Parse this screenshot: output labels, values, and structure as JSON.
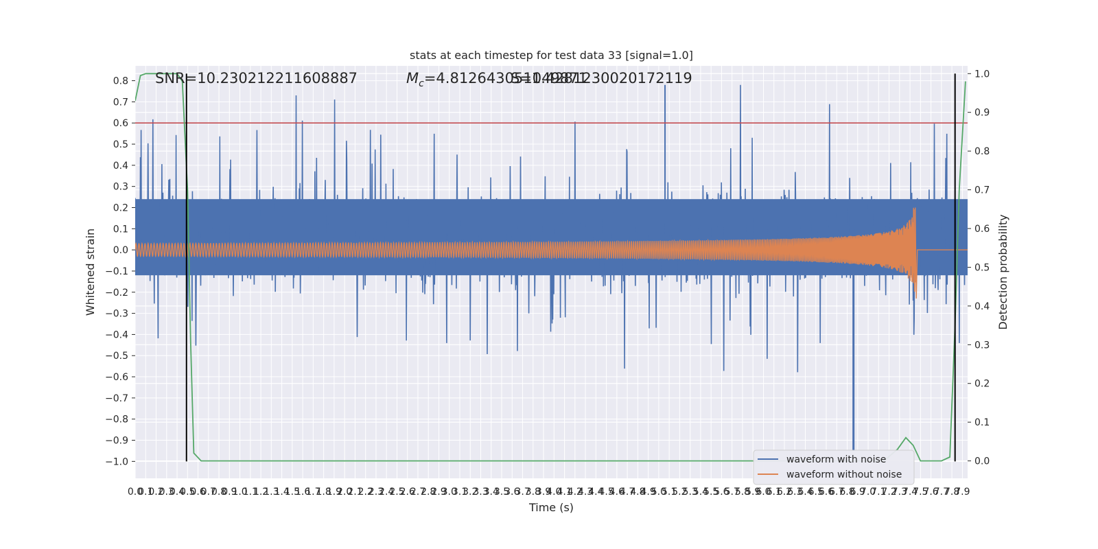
{
  "chart_data": {
    "type": "line",
    "title": "stats at each timestep for test data 33 [signal=1.0]",
    "xlabel": "Time (s)",
    "ylabel": "Whitened strain",
    "ylabel_right": "Detection probability",
    "xlim": [
      0.0,
      7.95
    ],
    "ylim": [
      -1.08,
      0.87
    ],
    "ylim_right": [
      -0.045,
      1.02
    ],
    "x_ticks": [
      "0.0",
      "0.1",
      "0.2",
      "0.3",
      "0.4",
      "0.5",
      "0.6",
      "0.7",
      "0.8",
      "0.9",
      "1.0",
      "1.1",
      "1.2",
      "1.3",
      "1.4",
      "1.5",
      "1.6",
      "1.7",
      "1.8",
      "1.9",
      "2.0",
      "2.1",
      "2.2",
      "2.3",
      "2.4",
      "2.5",
      "2.6",
      "2.7",
      "2.8",
      "2.9",
      "3.0",
      "3.1",
      "3.2",
      "3.3",
      "3.4",
      "3.5",
      "3.6",
      "3.7",
      "3.8",
      "3.9",
      "4.0",
      "4.1",
      "4.2",
      "4.3",
      "4.4",
      "4.5",
      "4.6",
      "4.7",
      "4.8",
      "4.9",
      "5.0",
      "5.1",
      "5.2",
      "5.3",
      "5.4",
      "5.5",
      "5.6",
      "5.7",
      "5.8",
      "5.9",
      "6.0",
      "6.1",
      "6.2",
      "6.3",
      "6.4",
      "6.5",
      "6.6",
      "6.7",
      "6.8",
      "6.9",
      "7.0",
      "7.1",
      "7.2",
      "7.3",
      "7.4",
      "7.5",
      "7.6",
      "7.7",
      "7.8",
      "7.9"
    ],
    "y_ticks": [
      "0.8",
      "0.7",
      "0.6",
      "0.5",
      "0.4",
      "0.3",
      "0.2",
      "0.1",
      "0.0",
      "−0.1",
      "−0.2",
      "−0.3",
      "−0.4",
      "−0.5",
      "−0.6",
      "−0.7",
      "−0.8",
      "−0.9",
      "−1.0"
    ],
    "y_ticks_right": [
      "1.0",
      "0.9",
      "0.8",
      "0.7",
      "0.6",
      "0.5",
      "0.4",
      "0.3",
      "0.2",
      "0.1",
      "0.0"
    ],
    "annotations": {
      "snr": "SNR=10.230212211608887",
      "mc_symbol": "M",
      "mc_sub": "c",
      "mc_value": "=4.812643051049871",
      "overlap": "S=1.4281230020172119"
    },
    "threshold_line": {
      "y": 0.6,
      "color": "#c44e52"
    },
    "vertical_markers": [
      0.49,
      7.83
    ],
    "series": [
      {
        "name": "waveform with noise",
        "color": "#4c72b0",
        "typical_amplitude": 0.3,
        "max": 0.78,
        "min": -0.95
      },
      {
        "name": "waveform without noise",
        "color": "#dd8452",
        "start_amplitude": 0.03,
        "peak_time": 7.45,
        "peak_max": 0.2,
        "peak_min": -0.23
      },
      {
        "name": "detection probability",
        "color": "#55a868",
        "axis": "right",
        "points": [
          [
            0.0,
            0.93
          ],
          [
            0.05,
            0.995
          ],
          [
            0.1,
            1.0
          ],
          [
            0.2,
            1.0
          ],
          [
            0.3,
            1.0
          ],
          [
            0.4,
            1.0
          ],
          [
            0.45,
            0.98
          ],
          [
            0.5,
            0.7
          ],
          [
            0.53,
            0.3
          ],
          [
            0.56,
            0.02
          ],
          [
            0.63,
            0.0
          ],
          [
            1.0,
            0.0
          ],
          [
            2.0,
            0.0
          ],
          [
            3.0,
            0.0
          ],
          [
            4.0,
            0.0
          ],
          [
            5.0,
            0.0
          ],
          [
            6.0,
            0.0
          ],
          [
            7.0,
            0.0
          ],
          [
            7.15,
            0.0
          ],
          [
            7.28,
            0.03
          ],
          [
            7.36,
            0.06
          ],
          [
            7.43,
            0.04
          ],
          [
            7.5,
            0.0
          ],
          [
            7.7,
            0.0
          ],
          [
            7.78,
            0.01
          ],
          [
            7.83,
            0.35
          ],
          [
            7.87,
            0.7
          ],
          [
            7.93,
            0.98
          ]
        ]
      }
    ],
    "legend": {
      "location": "lower-right",
      "entries": [
        {
          "label": "waveform with noise",
          "color": "#4c72b0"
        },
        {
          "label": "waveform without noise",
          "color": "#dd8452"
        }
      ]
    },
    "style": {
      "plot_bg": "#eaeaf2",
      "grid": "#ffffff"
    }
  }
}
